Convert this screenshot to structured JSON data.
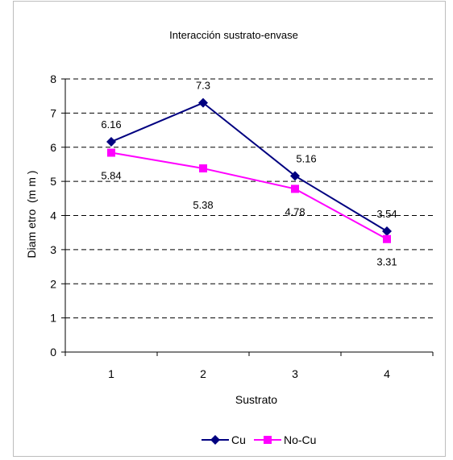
{
  "chart_data": {
    "type": "line",
    "title": "Interacción sustrato-envase",
    "xlabel": "Sustrato",
    "ylabel": "Diam etro  (m m )",
    "categories": [
      "1",
      "2",
      "3",
      "4"
    ],
    "x": [
      1,
      2,
      3,
      4
    ],
    "ylim": [
      0,
      8
    ],
    "yticks": [
      0,
      1,
      2,
      3,
      4,
      5,
      6,
      7,
      8
    ],
    "ytick_labels": [
      "0",
      "1",
      "2",
      "3",
      "4",
      "5",
      "6",
      "7",
      "8"
    ],
    "grid": "horizontal dashed",
    "legend_position": "bottom",
    "series": [
      {
        "name": "Cu",
        "values": [
          6.16,
          7.3,
          5.16,
          3.54
        ],
        "labels": [
          "6.16",
          "7.3",
          "5.16",
          "3.54"
        ],
        "color": "#000080",
        "marker": "diamond"
      },
      {
        "name": "No-Cu",
        "values": [
          5.84,
          5.38,
          4.78,
          3.31
        ],
        "labels": [
          "5.84",
          "5.38",
          "4.78",
          "3.31"
        ],
        "color": "#ff00ff",
        "marker": "square"
      }
    ]
  }
}
